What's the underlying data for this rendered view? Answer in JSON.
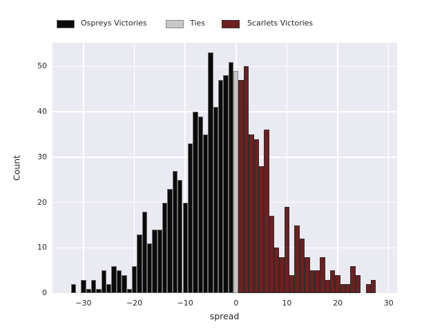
{
  "legend": {
    "items": [
      {
        "label": "Ospreys Victories",
        "color": "#0a0a0a",
        "edge": "#6e6e6e"
      },
      {
        "label": "Ties",
        "color": "#c7c7c7",
        "edge": "#8a8a8a"
      },
      {
        "label": "Scarlets Victories",
        "color": "#6f1f1f",
        "edge": "#2d2d2d"
      }
    ]
  },
  "axes": {
    "xlabel": "spread",
    "ylabel": "Count"
  },
  "chart_data": {
    "type": "bar",
    "subtype": "histogram",
    "title": "",
    "xlabel": "spread",
    "ylabel": "Count",
    "bin_width": 1,
    "xlim": [
      -36.1,
      31.6
    ],
    "ylim": [
      0,
      55.2
    ],
    "x_ticks": [
      -30,
      -20,
      -10,
      0,
      10,
      20,
      30
    ],
    "y_ticks": [
      0,
      10,
      20,
      30,
      40,
      50
    ],
    "grid": true,
    "plot_bg": "#eaeaf2",
    "legend_position": "top outside, horizontal",
    "series": [
      {
        "name": "Ospreys Victories",
        "color": "#0a0a0a",
        "edge": "#6e6e6e",
        "x": [
          -32,
          -31,
          -30,
          -29,
          -28,
          -27,
          -26,
          -25,
          -24,
          -23,
          -22,
          -21,
          -20,
          -19,
          -18,
          -17,
          -16,
          -15,
          -14,
          -13,
          -12,
          -11,
          -10,
          -9,
          -8,
          -7,
          -6,
          -5,
          -4,
          -3,
          -2,
          -1
        ],
        "counts": [
          2,
          0,
          3,
          1,
          3,
          1,
          5,
          2,
          6,
          5,
          4,
          1,
          6,
          13,
          18,
          11,
          14,
          14,
          20,
          23,
          27,
          25,
          20,
          33,
          40,
          39,
          35,
          53,
          41,
          47,
          48,
          51
        ]
      },
      {
        "name": "Ties",
        "color": "#c7c7c7",
        "edge": "#8a8a8a",
        "x": [
          0
        ],
        "counts": [
          49
        ]
      },
      {
        "name": "Scarlets Victories",
        "color": "#6f1f1f",
        "edge": "#2d2d2d",
        "x": [
          1,
          2,
          3,
          4,
          5,
          6,
          7,
          8,
          9,
          10,
          11,
          12,
          13,
          14,
          15,
          16,
          17,
          18,
          19,
          20,
          21,
          22,
          23,
          24,
          25,
          26,
          27
        ],
        "counts": [
          47,
          50,
          35,
          34,
          28,
          36,
          17,
          10,
          8,
          19,
          4,
          15,
          12,
          8,
          5,
          5,
          8,
          3,
          5,
          4,
          2,
          2,
          6,
          4,
          0,
          2,
          3
        ]
      }
    ]
  }
}
